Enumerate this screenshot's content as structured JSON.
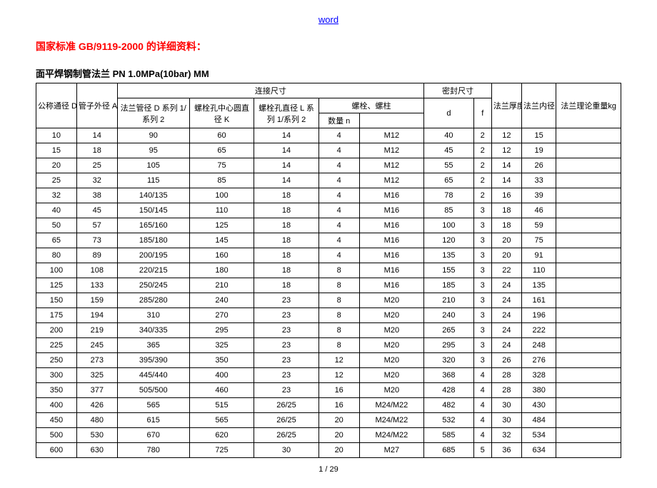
{
  "topLink": "word",
  "redHeading": "国家标准 GB/9119-2000 的详细资料：",
  "subHeading": "面平焊钢制管法兰  PN 1.0MPa(10bar)  MM",
  "pageNum": "1  / 29",
  "headers": {
    "dn": "公称通径 DN",
    "a": "管子外径 A",
    "conn": "连接尺寸",
    "d_series": "法兰管径 D 系列 1/系列 2",
    "k": "螺栓孔中心圆直径 K",
    "l": "螺栓孔直径 L 系列 1/系列 2",
    "bolt_group": "螺栓、螺柱",
    "n": "数量 n",
    "bolt_spec": "",
    "seal": "密封尺寸",
    "dseal": "d",
    "f": "f",
    "c": "法兰厚度 C",
    "b": "法兰内径 B",
    "kg": "法兰理论重量kg"
  },
  "rows": [
    [
      "10",
      "14",
      "90",
      "60",
      "14",
      "4",
      "M12",
      "40",
      "2",
      "12",
      "15",
      ""
    ],
    [
      "15",
      "18",
      "95",
      "65",
      "14",
      "4",
      "M12",
      "45",
      "2",
      "12",
      "19",
      ""
    ],
    [
      "20",
      "25",
      "105",
      "75",
      "14",
      "4",
      "M12",
      "55",
      "2",
      "14",
      "26",
      ""
    ],
    [
      "25",
      "32",
      "115",
      "85",
      "14",
      "4",
      "M12",
      "65",
      "2",
      "14",
      "33",
      ""
    ],
    [
      "32",
      "38",
      "140/135",
      "100",
      "18",
      "4",
      "M16",
      "78",
      "2",
      "16",
      "39",
      ""
    ],
    [
      "40",
      "45",
      "150/145",
      "110",
      "18",
      "4",
      "M16",
      "85",
      "3",
      "18",
      "46",
      ""
    ],
    [
      "50",
      "57",
      "165/160",
      "125",
      "18",
      "4",
      "M16",
      "100",
      "3",
      "18",
      "59",
      ""
    ],
    [
      "65",
      "73",
      "185/180",
      "145",
      "18",
      "4",
      "M16",
      "120",
      "3",
      "20",
      "75",
      ""
    ],
    [
      "80",
      "89",
      "200/195",
      "160",
      "18",
      "4",
      "M16",
      "135",
      "3",
      "20",
      "91",
      ""
    ],
    [
      "100",
      "108",
      "220/215",
      "180",
      "18",
      "8",
      "M16",
      "155",
      "3",
      "22",
      "110",
      ""
    ],
    [
      "125",
      "133",
      "250/245",
      "210",
      "18",
      "8",
      "M16",
      "185",
      "3",
      "24",
      "135",
      ""
    ],
    [
      "150",
      "159",
      "285/280",
      "240",
      "23",
      "8",
      "M20",
      "210",
      "3",
      "24",
      "161",
      ""
    ],
    [
      "175",
      "194",
      "310",
      "270",
      "23",
      "8",
      "M20",
      "240",
      "3",
      "24",
      "196",
      ""
    ],
    [
      "200",
      "219",
      "340/335",
      "295",
      "23",
      "8",
      "M20",
      "265",
      "3",
      "24",
      "222",
      ""
    ],
    [
      "225",
      "245",
      "365",
      "325",
      "23",
      "8",
      "M20",
      "295",
      "3",
      "24",
      "248",
      ""
    ],
    [
      "250",
      "273",
      "395/390",
      "350",
      "23",
      "12",
      "M20",
      "320",
      "3",
      "26",
      "276",
      ""
    ],
    [
      "300",
      "325",
      "445/440",
      "400",
      "23",
      "12",
      "M20",
      "368",
      "4",
      "28",
      "328",
      ""
    ],
    [
      "350",
      "377",
      "505/500",
      "460",
      "23",
      "16",
      "M20",
      "428",
      "4",
      "28",
      "380",
      ""
    ],
    [
      "400",
      "426",
      "565",
      "515",
      "26/25",
      "16",
      "M24/M22",
      "482",
      "4",
      "30",
      "430",
      ""
    ],
    [
      "450",
      "480",
      "615",
      "565",
      "26/25",
      "20",
      "M24/M22",
      "532",
      "4",
      "30",
      "484",
      ""
    ],
    [
      "500",
      "530",
      "670",
      "620",
      "26/25",
      "20",
      "M24/M22",
      "585",
      "4",
      "32",
      "534",
      ""
    ],
    [
      "600",
      "630",
      "780",
      "725",
      "30",
      "20",
      "M27",
      "685",
      "5",
      "36",
      "634",
      ""
    ]
  ]
}
